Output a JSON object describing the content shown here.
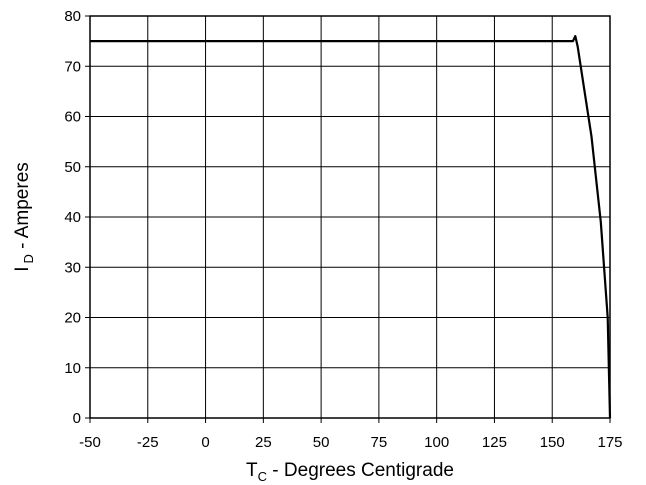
{
  "chart_data": {
    "type": "line",
    "title": "",
    "xlabel": {
      "main": "T",
      "sub": "C",
      "rest": " - Degrees Centigrade"
    },
    "ylabel": {
      "main": "I",
      "sub": "D",
      "rest": " - Amperes"
    },
    "xlim": [
      -50,
      175
    ],
    "ylim": [
      0,
      80
    ],
    "xticks": [
      -50,
      -25,
      0,
      25,
      50,
      75,
      100,
      125,
      150,
      175
    ],
    "yticks": [
      0,
      10,
      20,
      30,
      40,
      50,
      60,
      70,
      80
    ],
    "grid": true,
    "legend": "none",
    "colors": {
      "line": "#000000",
      "grid": "#000000",
      "background": "#ffffff"
    },
    "series": [
      {
        "values": [
          {
            "x": -50,
            "y": 75
          },
          {
            "x": 159,
            "y": 75
          },
          {
            "x": 160,
            "y": 76
          },
          {
            "x": 161,
            "y": 74
          },
          {
            "x": 167,
            "y": 56
          },
          {
            "x": 171,
            "y": 39
          },
          {
            "x": 174,
            "y": 20
          },
          {
            "x": 175,
            "y": 0
          }
        ]
      }
    ]
  }
}
